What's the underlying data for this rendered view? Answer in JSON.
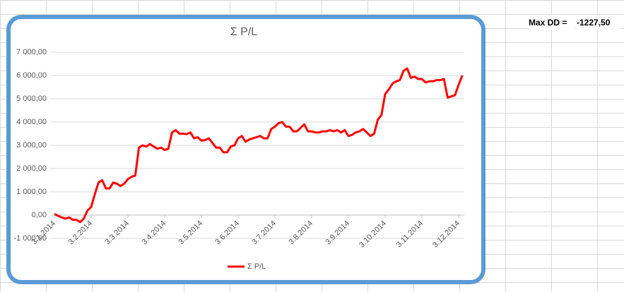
{
  "sheet": {
    "label": "Max DD =",
    "value": "-1227,50"
  },
  "chart_data": {
    "type": "line",
    "title": "Σ P/L",
    "categories": [
      "3.1.2014",
      null,
      null,
      null,
      null,
      null,
      null,
      null,
      null,
      null,
      "3.2.2014",
      null,
      null,
      null,
      null,
      null,
      null,
      null,
      null,
      null,
      "3.3.2014",
      null,
      null,
      null,
      null,
      null,
      null,
      null,
      null,
      null,
      "3.4.2014",
      null,
      null,
      null,
      null,
      null,
      null,
      null,
      null,
      null,
      "3.5.2014",
      null,
      null,
      null,
      null,
      null,
      null,
      null,
      null,
      null,
      "3.6.2014",
      null,
      null,
      null,
      null,
      null,
      null,
      null,
      null,
      null,
      "3.7.2014",
      null,
      null,
      null,
      null,
      null,
      null,
      null,
      null,
      null,
      "3.8.2014",
      null,
      null,
      null,
      null,
      null,
      null,
      null,
      null,
      null,
      "3.9.2014",
      null,
      null,
      null,
      null,
      null,
      null,
      null,
      null,
      null,
      "3.10.2014",
      null,
      null,
      null,
      null,
      null,
      null,
      null,
      null,
      null,
      "3.11.2014",
      null,
      null,
      null,
      null,
      null,
      null,
      null,
      null,
      null,
      "3.12.2014",
      null
    ],
    "series": [
      {
        "name": "Σ P/L",
        "color": "#ff0000",
        "values": [
          50,
          -30,
          -100,
          -150,
          -100,
          -200,
          -200,
          -300,
          -150,
          200,
          350,
          900,
          1400,
          1500,
          1150,
          1150,
          1400,
          1350,
          1250,
          1350,
          1550,
          1650,
          1700,
          2900,
          3000,
          2950,
          3050,
          2950,
          2850,
          2900,
          2800,
          2850,
          3550,
          3650,
          3500,
          3500,
          3480,
          3550,
          3300,
          3350,
          3200,
          3220,
          3300,
          3100,
          2900,
          2900,
          2700,
          2700,
          2950,
          3000,
          3300,
          3400,
          3150,
          3250,
          3300,
          3350,
          3400,
          3300,
          3300,
          3700,
          3800,
          3950,
          4000,
          3800,
          3800,
          3600,
          3600,
          3750,
          3900,
          3600,
          3600,
          3550,
          3550,
          3600,
          3600,
          3650,
          3600,
          3650,
          3550,
          3650,
          3400,
          3450,
          3550,
          3600,
          3700,
          3550,
          3400,
          3500,
          4100,
          4300,
          5200,
          5400,
          5650,
          5750,
          5800,
          6200,
          6300,
          5900,
          5950,
          5850,
          5850,
          5700,
          5750,
          5750,
          5800,
          5800,
          5850,
          5050,
          5100,
          5150,
          5600,
          6000
        ]
      }
    ],
    "ylim": [
      -1000,
      7000
    ],
    "yticks": [
      {
        "value": -1000,
        "label": "-1 000,00"
      },
      {
        "value": 0,
        "label": "0,00"
      },
      {
        "value": 1000,
        "label": "1 000,00"
      },
      {
        "value": 2000,
        "label": "2 000,00"
      },
      {
        "value": 3000,
        "label": "3 000,00"
      },
      {
        "value": 4000,
        "label": "4 000,00"
      },
      {
        "value": 5000,
        "label": "5 000,00"
      },
      {
        "value": 6000,
        "label": "6 000,00"
      },
      {
        "value": 7000,
        "label": "7 000,00"
      }
    ],
    "grid": true,
    "legend": "bottom"
  }
}
